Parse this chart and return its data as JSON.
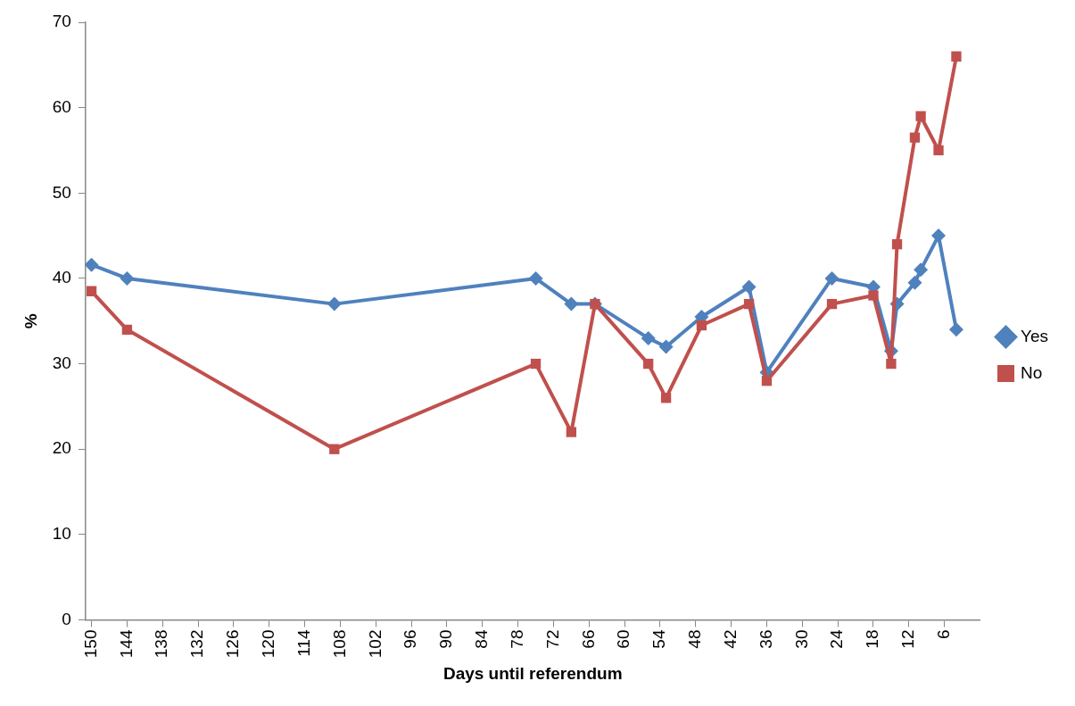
{
  "chart_data": {
    "type": "line",
    "xlabel": "Days until referendum",
    "ylabel": "%",
    "legend": "right",
    "xlim": [
      151,
      0
    ],
    "xticks": [
      150,
      144,
      138,
      132,
      126,
      120,
      114,
      108,
      102,
      96,
      90,
      84,
      78,
      72,
      66,
      60,
      54,
      48,
      42,
      36,
      30,
      24,
      18,
      12,
      6
    ],
    "ylim": [
      0,
      70
    ],
    "yticks": [
      0,
      10,
      20,
      30,
      40,
      50,
      60,
      70
    ],
    "series": [
      {
        "name": "Yes",
        "color": "#4f81bd",
        "marker": "diamond",
        "x": [
          150,
          144,
          109,
          75,
          69,
          65,
          56,
          53,
          47,
          39,
          36,
          25,
          18,
          15,
          14,
          11,
          10,
          7,
          4
        ],
        "values": [
          41.6,
          40,
          37,
          40,
          37,
          37,
          33,
          32,
          35.5,
          39,
          29,
          40,
          39,
          31.5,
          37,
          39.5,
          41,
          45,
          34
        ]
      },
      {
        "name": "No",
        "color": "#c0504d",
        "marker": "square",
        "x": [
          150,
          144,
          109,
          75,
          69,
          65,
          56,
          53,
          47,
          39,
          36,
          25,
          18,
          15,
          14,
          11,
          10,
          7,
          4
        ],
        "values": [
          38.5,
          34,
          20,
          30,
          22,
          37,
          30,
          26,
          34.5,
          37,
          28,
          37,
          38,
          30,
          44,
          56.5,
          59,
          55,
          66
        ]
      }
    ]
  }
}
